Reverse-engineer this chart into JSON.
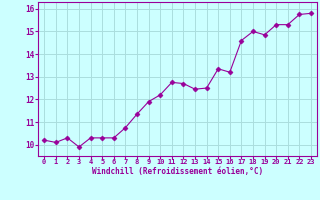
{
  "x": [
    0,
    1,
    2,
    3,
    4,
    5,
    6,
    7,
    8,
    9,
    10,
    11,
    12,
    13,
    14,
    15,
    16,
    17,
    18,
    19,
    20,
    21,
    22,
    23
  ],
  "y": [
    10.2,
    10.1,
    10.3,
    9.9,
    10.3,
    10.3,
    10.3,
    10.75,
    11.35,
    11.9,
    12.2,
    12.75,
    12.7,
    12.45,
    12.5,
    13.35,
    13.2,
    14.6,
    15.0,
    14.85,
    15.3,
    15.3,
    15.75,
    15.8
  ],
  "line_color": "#990099",
  "marker": "D",
  "marker_size": 2.5,
  "bg_color": "#ccffff",
  "grid_color": "#aadddd",
  "xlabel": "Windchill (Refroidissement éolien,°C)",
  "xlabel_color": "#990099",
  "tick_color": "#990099",
  "ylim": [
    9.5,
    16.3
  ],
  "xlim": [
    -0.5,
    23.5
  ],
  "yticks": [
    10,
    11,
    12,
    13,
    14,
    15,
    16
  ],
  "xticks": [
    0,
    1,
    2,
    3,
    4,
    5,
    6,
    7,
    8,
    9,
    10,
    11,
    12,
    13,
    14,
    15,
    16,
    17,
    18,
    19,
    20,
    21,
    22,
    23
  ]
}
